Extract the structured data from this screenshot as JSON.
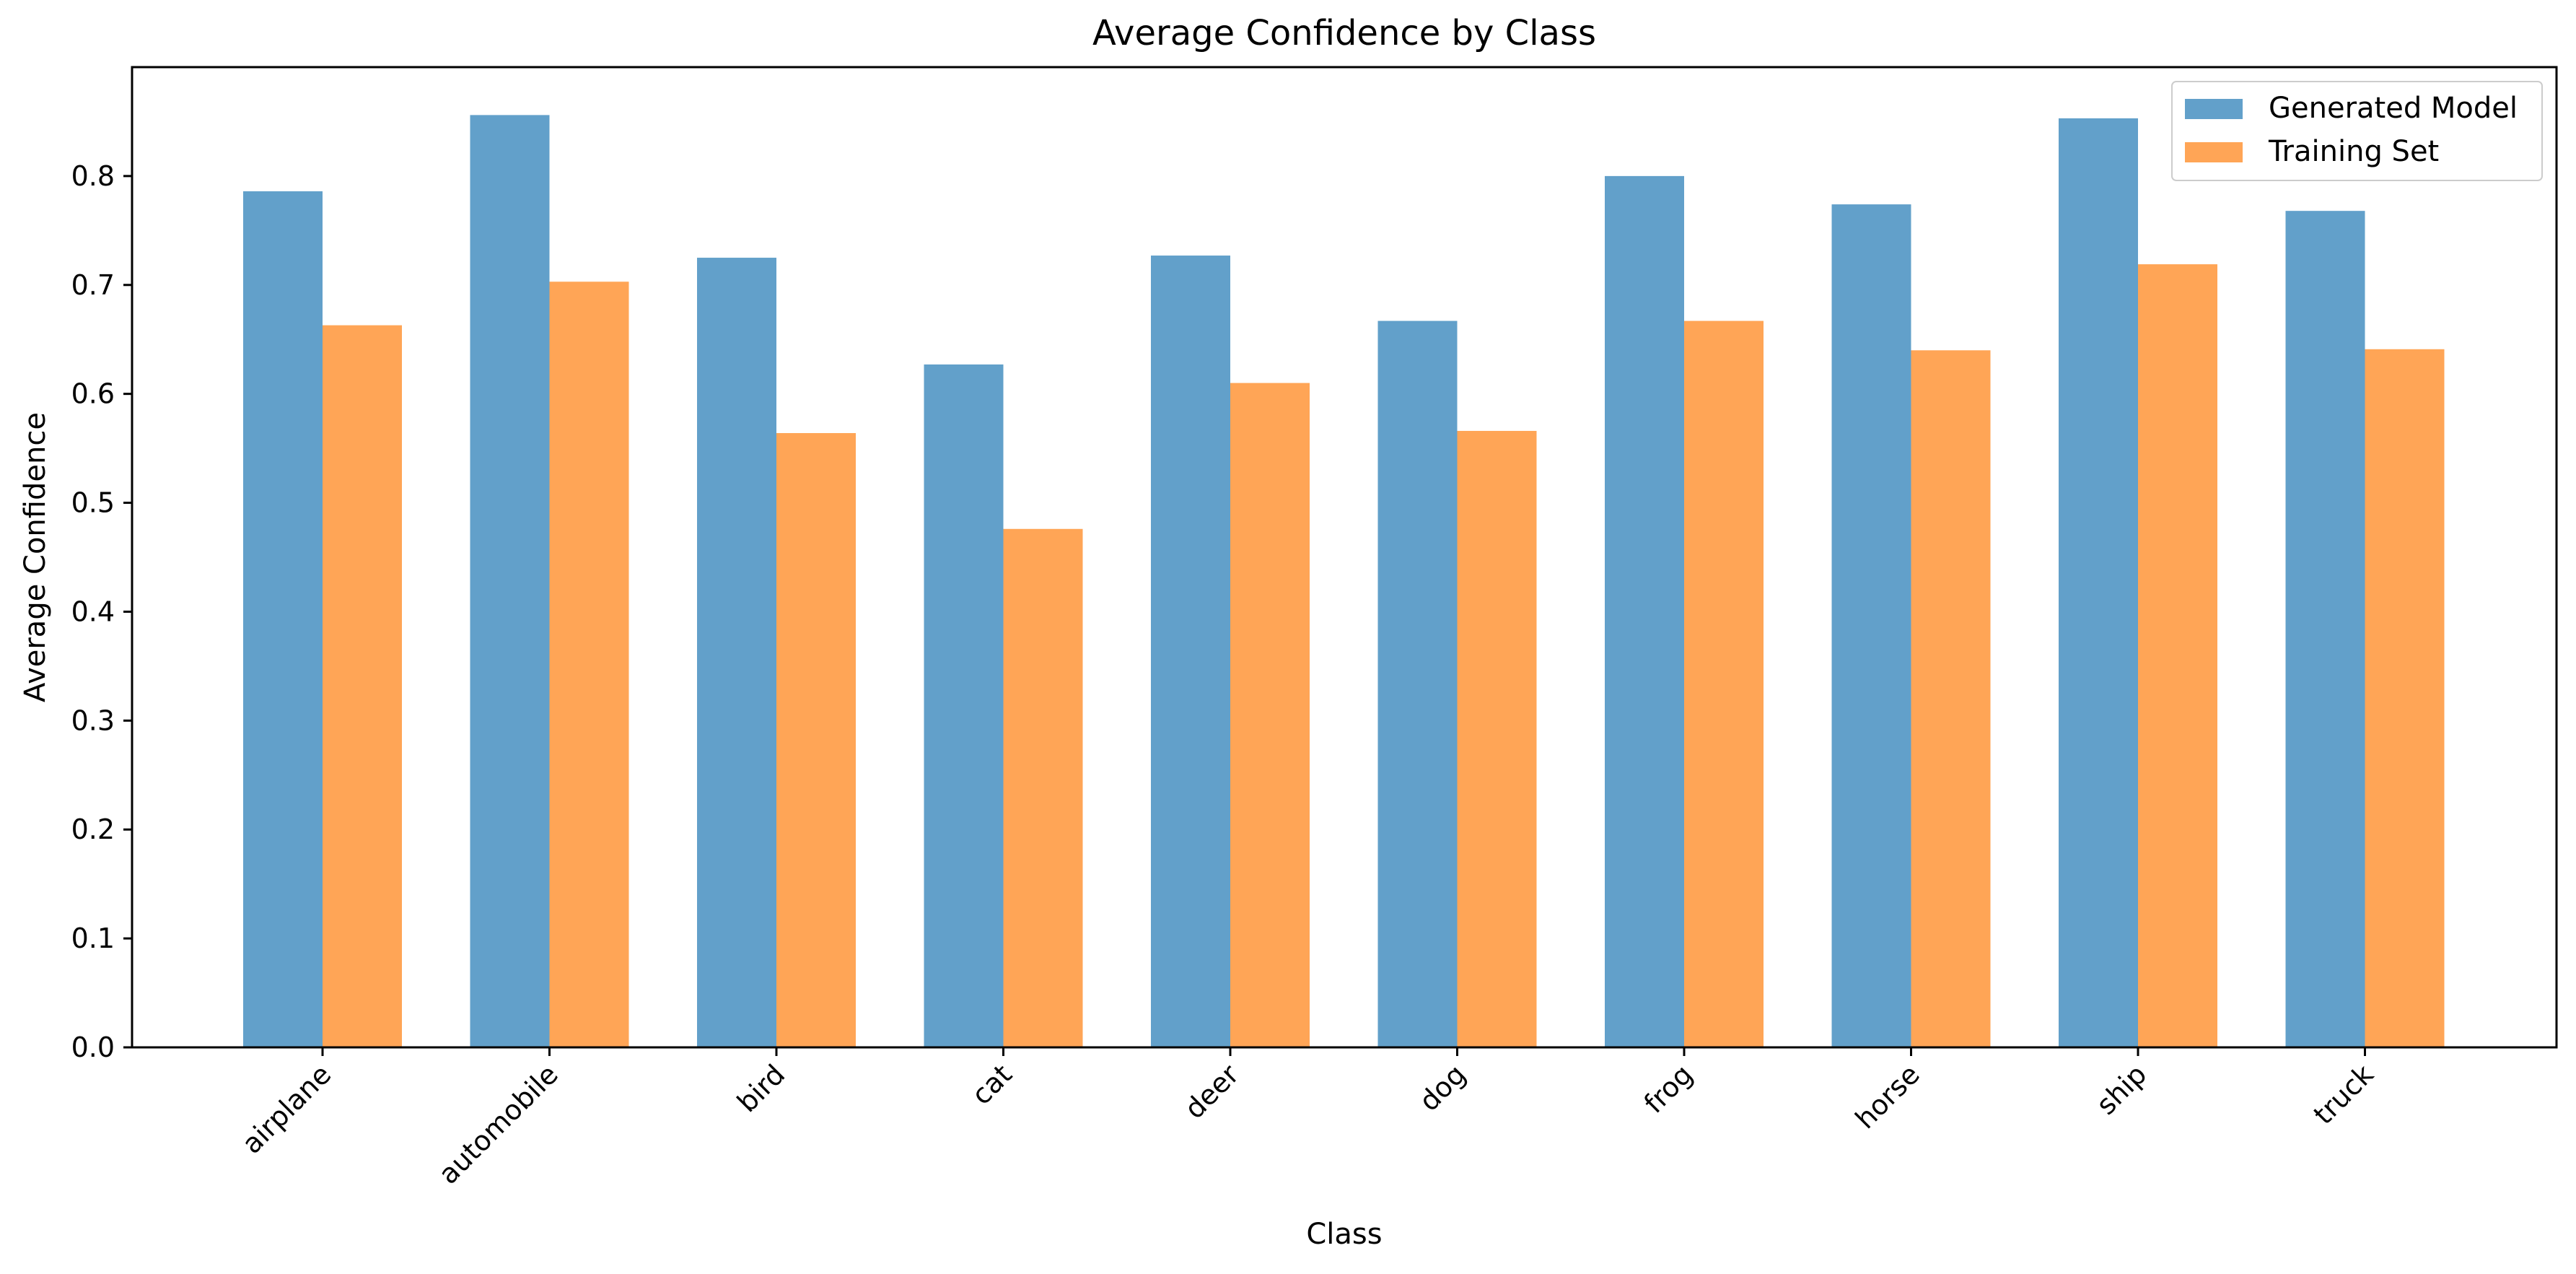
{
  "chart_data": {
    "type": "bar",
    "title": "Average Confidence by Class",
    "xlabel": "Class",
    "ylabel": "Average Confidence",
    "categories": [
      "airplane",
      "automobile",
      "bird",
      "cat",
      "deer",
      "dog",
      "frog",
      "horse",
      "ship",
      "truck"
    ],
    "series": [
      {
        "name": "Generated Model",
        "color": "#1f77b4",
        "values": [
          0.786,
          0.856,
          0.725,
          0.627,
          0.727,
          0.667,
          0.8,
          0.774,
          0.853,
          0.768
        ]
      },
      {
        "name": "Training Set",
        "color": "#ff7f0e",
        "values": [
          0.663,
          0.703,
          0.564,
          0.476,
          0.61,
          0.566,
          0.667,
          0.64,
          0.719,
          0.641
        ]
      }
    ],
    "ylim": [
      0,
      0.9
    ],
    "yticks": [
      "0.0",
      "0.1",
      "0.2",
      "0.3",
      "0.4",
      "0.5",
      "0.6",
      "0.7",
      "0.8"
    ],
    "bar_opacity": 0.7,
    "grid": false,
    "legend_position": "top-right",
    "xtick_rotation": "45 degrees"
  }
}
